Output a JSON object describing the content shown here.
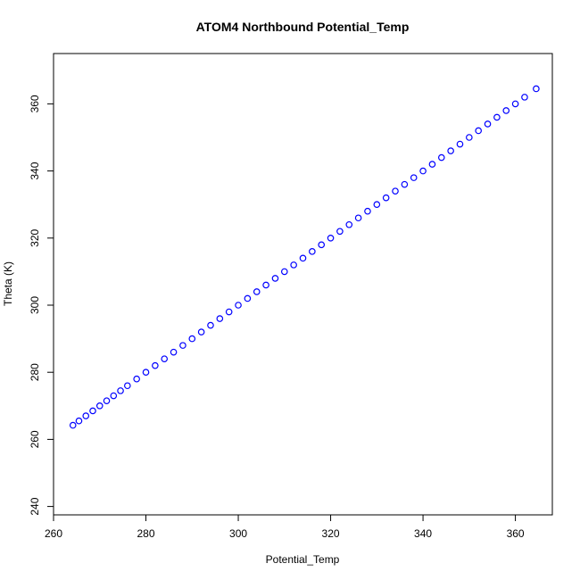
{
  "chart_data": {
    "type": "scatter",
    "title": "ATOM4 Northbound Potential_Temp",
    "xlabel": "Potential_Temp",
    "ylabel": "Theta (K)",
    "xlim": [
      260,
      368
    ],
    "ylim": [
      237.5,
      375
    ],
    "xticks": [
      260,
      280,
      300,
      320,
      340,
      360
    ],
    "yticks": [
      240,
      260,
      280,
      300,
      320,
      340,
      360
    ],
    "marker": "open-circle",
    "color": "#0000ff",
    "grid": false,
    "legend": "none",
    "series": [
      {
        "x": [
          264.2,
          265.5,
          267.0,
          268.5,
          270.0,
          271.5,
          273.0,
          274.5,
          276.0,
          278.0,
          280.0,
          282.0,
          284.0,
          286.0,
          288.0,
          290.0,
          292.0,
          294.0,
          296.0,
          298.0,
          300.0,
          302.0,
          304.0,
          306.0,
          308.0,
          310.0,
          312.0,
          314.0,
          316.0,
          318.0,
          320.0,
          322.0,
          324.0,
          326.0,
          328.0,
          330.0,
          332.0,
          334.0,
          336.0,
          338.0,
          340.0,
          342.0,
          344.0,
          346.0,
          348.0,
          350.0,
          352.0,
          354.0,
          356.0,
          358.0,
          360.0,
          362.0,
          364.5
        ],
        "y": [
          264.2,
          265.5,
          267.0,
          268.5,
          270.0,
          271.5,
          273.0,
          274.5,
          276.0,
          278.0,
          280.0,
          282.0,
          284.0,
          286.0,
          288.0,
          290.0,
          292.0,
          294.0,
          296.0,
          298.0,
          300.0,
          302.0,
          304.0,
          306.0,
          308.0,
          310.0,
          312.0,
          314.0,
          316.0,
          318.0,
          320.0,
          322.0,
          324.0,
          326.0,
          328.0,
          330.0,
          332.0,
          334.0,
          336.0,
          338.0,
          340.0,
          342.0,
          344.0,
          346.0,
          348.0,
          350.0,
          352.0,
          354.0,
          356.0,
          358.0,
          360.0,
          362.0,
          364.5
        ]
      }
    ]
  }
}
